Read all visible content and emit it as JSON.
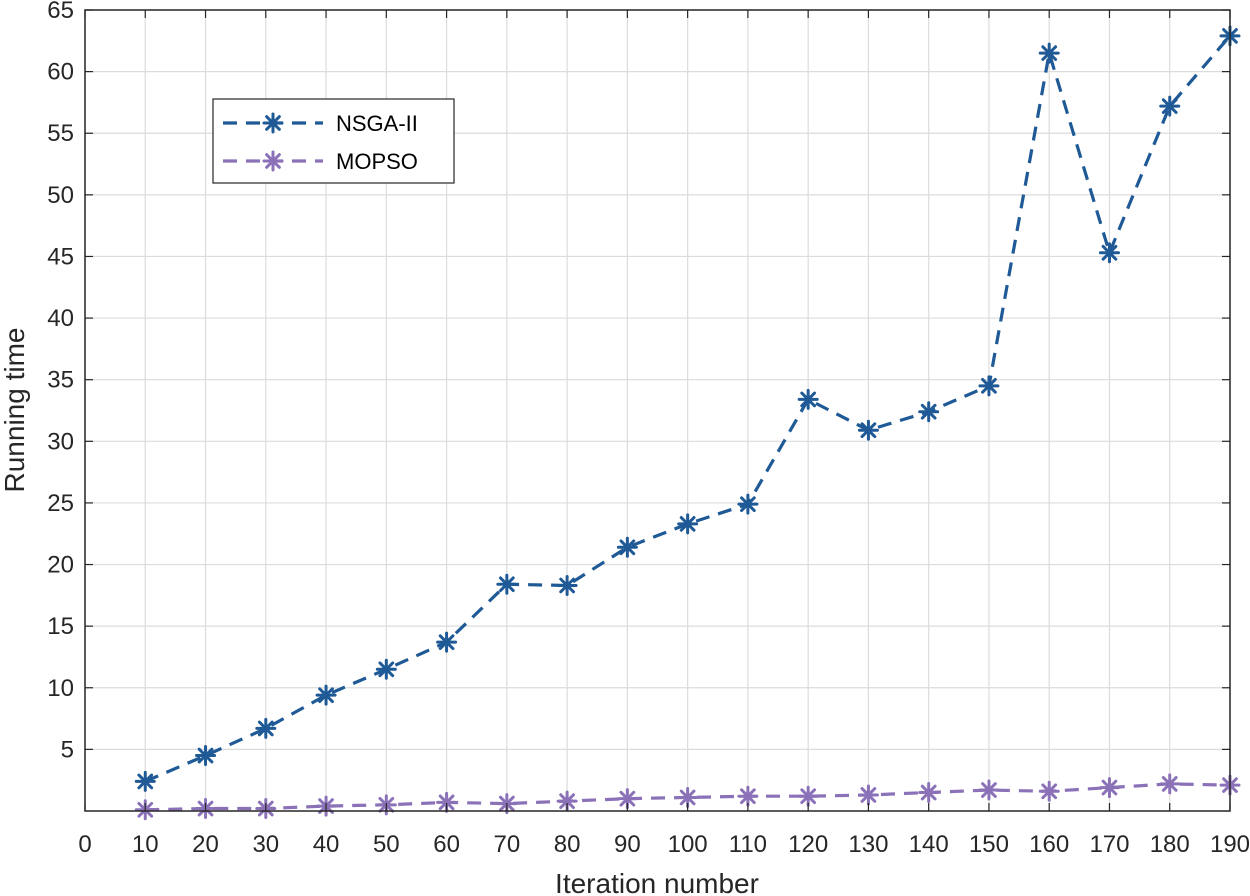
{
  "chart_data": {
    "type": "line",
    "title": "",
    "xlabel": "Iteration number",
    "ylabel": "Running time",
    "xlim": [
      0,
      190
    ],
    "ylim": [
      0,
      65
    ],
    "xticks": [
      0,
      10,
      20,
      30,
      40,
      50,
      60,
      70,
      80,
      90,
      100,
      110,
      120,
      130,
      140,
      150,
      160,
      170,
      180,
      190
    ],
    "yticks": [
      5,
      10,
      15,
      20,
      25,
      30,
      35,
      40,
      45,
      50,
      55,
      60,
      65
    ],
    "grid": true,
    "legend_position": "upper-left",
    "x": [
      10,
      20,
      30,
      40,
      50,
      60,
      70,
      80,
      90,
      100,
      110,
      120,
      130,
      140,
      150,
      160,
      170,
      180,
      190
    ],
    "series": [
      {
        "name": "NSGA-II",
        "color": "#1f5a96",
        "values": [
          2.4,
          4.5,
          6.7,
          9.4,
          11.5,
          13.7,
          18.4,
          18.3,
          21.4,
          23.3,
          24.9,
          33.4,
          30.9,
          32.4,
          34.5,
          61.5,
          45.3,
          57.2,
          62.9
        ]
      },
      {
        "name": "MOPSO",
        "color": "#8b72b8",
        "values": [
          0.1,
          0.2,
          0.2,
          0.4,
          0.5,
          0.7,
          0.6,
          0.8,
          1.0,
          1.1,
          1.2,
          1.2,
          1.3,
          1.5,
          1.7,
          1.6,
          1.9,
          2.2,
          2.1
        ]
      }
    ]
  }
}
